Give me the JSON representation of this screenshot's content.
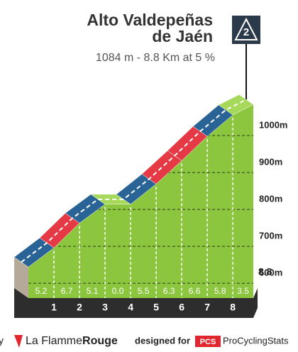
{
  "chart_data": {
    "type": "climb-profile",
    "title": [
      "Alto Valdepeñas",
      "de Jaén"
    ],
    "subtitle": "1084 m - 8.8 Km at 5 %",
    "category": "2",
    "x": [
      0,
      1,
      2,
      3,
      4,
      5,
      6,
      7,
      8,
      8.8
    ],
    "xlim": [
      0,
      8.8
    ],
    "xticks": [
      1,
      2,
      3,
      4,
      5,
      6,
      7,
      8,
      8.8
    ],
    "series": [
      {
        "color": "#8cc63f",
        "values": [
          644,
          696,
          763,
          814,
          814,
          869,
          932,
          998,
          1056,
          1084
        ]
      }
    ],
    "gradients": [
      "5.2",
      "6.7",
      "5.1",
      "0.0",
      "5.5",
      "6.3",
      "6.6",
      "5.8",
      "3.5"
    ],
    "segment_colors": [
      "#2a6496",
      "#e63946",
      "#2a6496",
      "#a6d85a",
      "#2a6496",
      "#e63946",
      "#e63946",
      "#2a6496",
      "#a6d85a"
    ],
    "ylim": [
      560,
      1100
    ],
    "yticks": [
      {
        "value": 600,
        "label": "600m"
      },
      {
        "value": 700,
        "label": "700m"
      },
      {
        "value": 800,
        "label": "800m"
      },
      {
        "value": 900,
        "label": "900m"
      },
      {
        "value": 1000,
        "label": "1000m"
      }
    ],
    "grid": true
  },
  "footer": {
    "by": "y",
    "brand_1": "La Flamme",
    "brand_2": "Rouge",
    "designed": "designed for",
    "pcs": "PCS",
    "pcs_name": "ProCyclingStats"
  }
}
